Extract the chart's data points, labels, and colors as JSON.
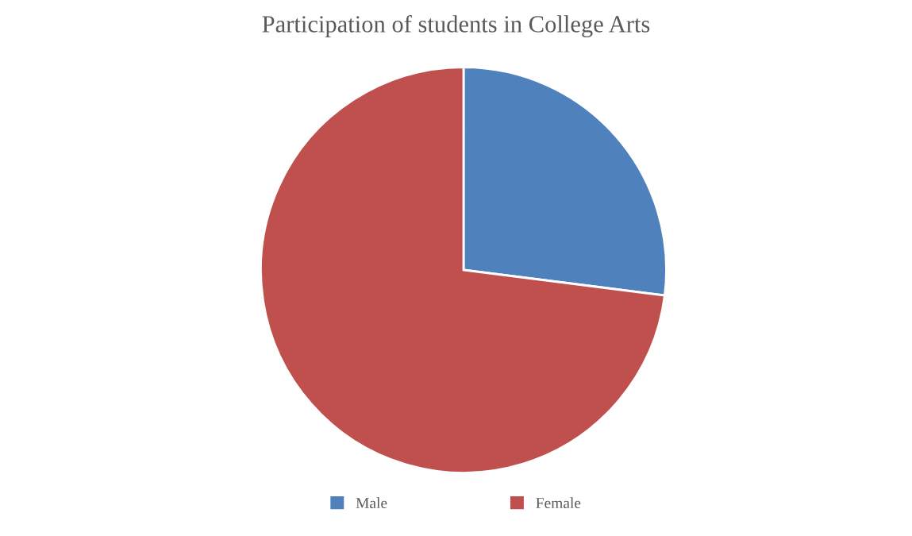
{
  "chart_data": {
    "type": "pie",
    "title": "Participation of students in College Arts",
    "categories": [
      "Male",
      "Female"
    ],
    "values": [
      27,
      73
    ],
    "colors": [
      "#4f81bd",
      "#c0504d"
    ],
    "legend": "bottom"
  }
}
